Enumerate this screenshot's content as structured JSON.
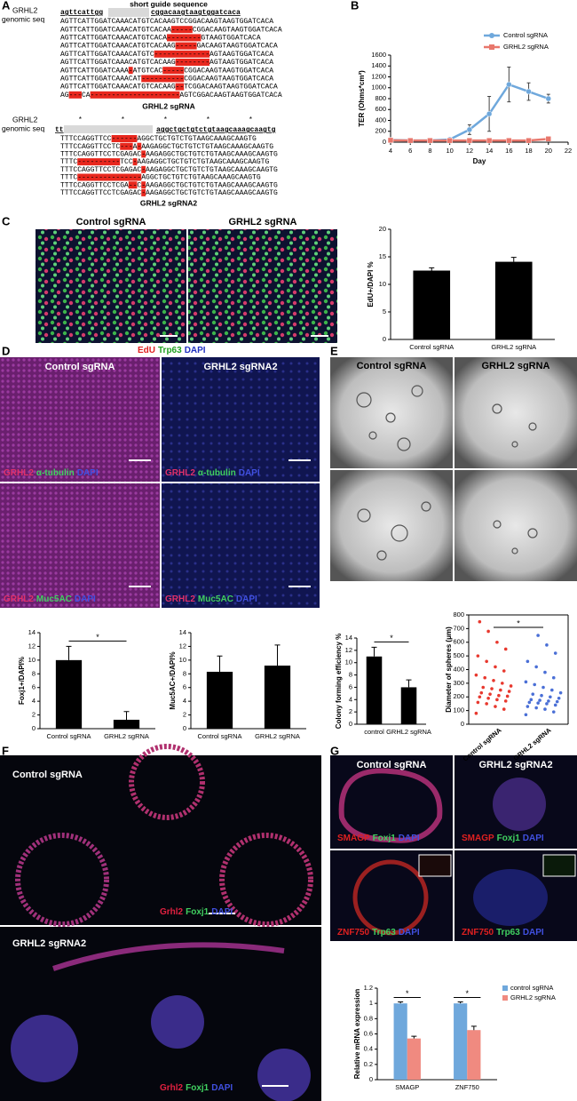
{
  "panel_labels": [
    "A",
    "B",
    "C",
    "D",
    "E",
    "F",
    "G"
  ],
  "A": {
    "gene": "GRHL2",
    "genomic": "genomic seq",
    "guide": "short guide sequence",
    "header_left": "agttcattgg",
    "header_right": "cggacaagtaagtggatcaca",
    "rows": [
      "AGTTCATTGGATCAAACATGTCACAAGTCCGGACAAGTAAGTGGATCACA",
      "AGTTCATTGGATCAAACATGTCACAA-----CGGACAAGTAAGTGGATCACA",
      "AGTTCATTGGATCAAACATGTCACA--------GTAAGTGGATCACA",
      "AGTTCATTGGATCAAACATGTCACAAG-----GACAAGTAAGTGGATCACA",
      "AGTTCATTGGATCAAACATGTC-------------AGTAAGTGGATCACA",
      "AGTTCATTGGATCAAACATGTCACAAG--------AGTAAGTGGATCACA",
      "AGTTCATTGGATCAAA-ATGTCAC-----CGGACAAGTAAGTGGATCACA",
      "AGTTCATTGGATCAAACAT----------CGGACAAGTAAGTGGATCACA",
      "AGTTCATTGGATCAAACATGTCACAAG--TCGGACAAGTAAGTGGATCACA",
      "AG---CA---------------------AGTCGGACAAGTAAGTGGATCACA"
    ],
    "caption": "GRHL2 sgRNA",
    "block2": {
      "gene": "GRHL2",
      "genomic": "genomic seq",
      "stars": "*         *         *         *         *",
      "header_left": "tt",
      "header_right": "aggctgctgtctgtaagcaaagcaagtg",
      "rows": [
        "TTTCCAGGTTCC------AGGCTGCTGTCTGTAAGCAAAGCAAGTG",
        "TTTCCAGGTTCCTC---A-AAGAGGCTGCTGTCTGTAAGCAAAGCAAGTG",
        "TTTCCAGGTTCCTCGAGAC-AAGAGGCTGCTGTCTGTAAGCAAAGCAAGTG",
        "TTTC----------TCC-AAGAGGCTGCTGTCTGTAAGCAAAGCAAGTG",
        "TTTCCAGGTTCCTCGAGAC-AAGAGGCTGCTGTCTGTAAGCAAAGCAAGTG",
        "TTTC---------------AGGCTGCTGTCTGTAAGCAAAGCAAGTG",
        "TTTCCAGGTTCCTCGA--C-AAGAGGCTGCTGTCTGTAAGCAAAGCAAGTG",
        "TTTCCAGGTTCCTCGAGAC-AAGAGGCTGCTGTCTGTAAGCAAAGCAAGTG"
      ],
      "caption": "GRHL2 sgRNA2"
    }
  },
  "C": {
    "titles": [
      "Control sgRNA",
      "GRHL2 sgRNA"
    ],
    "caption": [
      "EdU",
      "Trp63",
      "DAPI"
    ]
  },
  "D": {
    "titles": [
      "Control sgRNA",
      "GRHL2 sgRNA2"
    ],
    "captions": [
      [
        "GRHL2",
        "α-tubulin",
        "DAPI"
      ],
      [
        "GRHL2",
        "α-tubulin",
        "DAPI"
      ],
      [
        "GRHL2",
        "Muc5AC",
        "DAPI"
      ],
      [
        "GRHL2",
        "Muc5AC",
        "DAPI"
      ]
    ]
  },
  "E": {
    "titles": [
      "Control sgRNA",
      "GRHL2 sgRNA"
    ]
  },
  "F": {
    "titles": [
      "Control sgRNA",
      "GRHL2 sgRNA2"
    ],
    "captions": [
      [
        "Grhl2",
        "Foxj1",
        "DAPI"
      ],
      [
        "Grhl2",
        "Foxj1",
        "DAPI"
      ]
    ]
  },
  "G": {
    "titles": [
      "Control sgRNA",
      "GRHL2 sgRNA2"
    ],
    "captions": [
      [
        "SMAGP",
        "Foxj1",
        "DAPI"
      ],
      [
        "SMAGP",
        "Foxj1",
        "DAPI"
      ],
      [
        "ZNF750",
        "Trp63",
        "DAPI"
      ],
      [
        "ZNF750",
        "Trp63",
        "DAPI"
      ]
    ]
  },
  "chart_data": [
    {
      "type": "line",
      "xlabel": "Day",
      "ylabel": "TER (Ohms*cm²)",
      "x": [
        4,
        6,
        8,
        10,
        12,
        14,
        16,
        18,
        20
      ],
      "series": [
        {
          "name": "Control sgRNA",
          "color": "#6fa8dc",
          "marker": "circle",
          "values": [
            40,
            30,
            30,
            50,
            230,
            520,
            1060,
            930,
            800
          ],
          "errors": [
            10,
            10,
            10,
            20,
            90,
            320,
            320,
            160,
            80
          ]
        },
        {
          "name": "GRHL2 sgRNA",
          "color": "#e8776c",
          "marker": "square",
          "values": [
            35,
            30,
            30,
            30,
            30,
            30,
            30,
            30,
            60
          ],
          "errors": [
            10,
            10,
            10,
            10,
            10,
            10,
            10,
            10,
            15
          ]
        }
      ],
      "xlim": [
        4,
        22
      ],
      "xticks": [
        4,
        6,
        8,
        10,
        12,
        14,
        16,
        18,
        20,
        22
      ],
      "ylim": [
        0,
        1600
      ],
      "yticks": [
        0,
        200,
        400,
        600,
        800,
        1000,
        1200,
        1400,
        1600
      ],
      "legend": "upper right"
    },
    {
      "type": "bar",
      "ylabel": "EdU+/DAPI %",
      "categories": [
        "Control sgRNA",
        "GRHL2 sgRNA"
      ],
      "values": [
        12.5,
        14.1
      ],
      "errors": [
        0.5,
        0.8
      ],
      "color": "#000000",
      "ylim": [
        0,
        20
      ],
      "yticks": [
        0,
        5,
        10,
        15,
        20
      ]
    },
    {
      "type": "bar",
      "ylabel": "Foxj1+/DAPI%",
      "categories": [
        "Control sgRNA",
        "GRHL2 sgRNA"
      ],
      "values": [
        10,
        1.3
      ],
      "errors": [
        2,
        1.2
      ],
      "color": "#000000",
      "ylim": [
        0,
        14
      ],
      "yticks": [
        0,
        2,
        4,
        6,
        8,
        10,
        12,
        14
      ],
      "annotations": [
        "*"
      ]
    },
    {
      "type": "bar",
      "ylabel": "Muc5AC+/DAPI%",
      "categories": [
        "Control sgRNA",
        "GRHL2 sgRNA"
      ],
      "values": [
        8.3,
        9.2
      ],
      "errors": [
        2.3,
        3
      ],
      "color": "#000000",
      "ylim": [
        0,
        14
      ],
      "yticks": [
        0,
        2,
        4,
        6,
        8,
        10,
        12,
        14
      ]
    },
    {
      "type": "bar",
      "ylabel": "Colony forming efficiency %",
      "categories": [
        "control",
        "GRHL2 sgRNA"
      ],
      "values": [
        11,
        6
      ],
      "errors": [
        1.5,
        1.2
      ],
      "color": "#000000",
      "ylim": [
        0,
        14
      ],
      "yticks": [
        0,
        2,
        4,
        6,
        8,
        10,
        12,
        14
      ],
      "annotations": [
        "*"
      ]
    },
    {
      "type": "strip",
      "ylabel": "Diameter of spheres (μm)",
      "categories": [
        "Control sgRNA",
        "GRHL2 sgRNA"
      ],
      "series": [
        {
          "color": "#e8382e",
          "values": [
            80,
            110,
            130,
            150,
            160,
            170,
            180,
            190,
            200,
            205,
            210,
            220,
            230,
            240,
            250,
            260,
            270,
            280,
            300,
            320,
            340,
            360,
            390,
            420,
            460,
            500,
            550,
            600,
            680,
            750
          ]
        },
        {
          "color": "#4a6fd6",
          "values": [
            70,
            90,
            110,
            120,
            130,
            140,
            150,
            155,
            160,
            165,
            170,
            175,
            180,
            190,
            200,
            210,
            220,
            230,
            250,
            270,
            290,
            310,
            340,
            380,
            420,
            460,
            520,
            580,
            650
          ]
        }
      ],
      "ylim": [
        0,
        800
      ],
      "yticks": [
        0,
        100,
        200,
        300,
        400,
        500,
        600,
        700,
        800
      ],
      "annotations": [
        "*"
      ]
    },
    {
      "type": "bar",
      "ylabel": "Relative mRNA expression",
      "categories": [
        "SMAGP",
        "ZNF750"
      ],
      "series": [
        {
          "name": "control sgRNA",
          "color": "#6fa8dc",
          "values": [
            1,
            1
          ],
          "errors": [
            0.02,
            0.02
          ]
        },
        {
          "name": "GRHL2 sgRNA",
          "color": "#f08a80",
          "values": [
            0.54,
            0.65
          ],
          "errors": [
            0.03,
            0.05
          ]
        }
      ],
      "ylim": [
        0,
        1.2
      ],
      "yticks": [
        0,
        0.2,
        0.4,
        0.6,
        0.8,
        1,
        1.2
      ],
      "annotations": [
        "*",
        "*"
      ],
      "legend": "right"
    }
  ]
}
